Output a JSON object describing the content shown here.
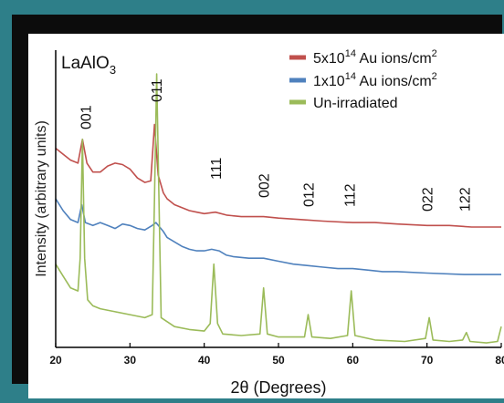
{
  "chart_data": {
    "type": "line",
    "title": "",
    "material_label": "LaAlO3",
    "xlabel": "2θ (Degrees)",
    "ylabel": "Intensity (arbitrary units)",
    "xlim": [
      20,
      80
    ],
    "x_ticks": [
      20,
      30,
      40,
      50,
      60,
      70,
      80
    ],
    "legend_position": "top-right",
    "peak_labels": [
      {
        "label": "001",
        "x": 24
      },
      {
        "label": "011",
        "x": 33.5
      },
      {
        "label": "111",
        "x": 41.5
      },
      {
        "label": "002",
        "x": 48
      },
      {
        "label": "012",
        "x": 54
      },
      {
        "label": "112",
        "x": 59.5
      },
      {
        "label": "022",
        "x": 70
      },
      {
        "label": "122",
        "x": 75
      }
    ],
    "series": [
      {
        "name": "5x10^14 Au ions/cm^2",
        "legend_main": "5x10",
        "legend_exp": "14",
        "legend_rest": " Au ions/cm",
        "legend_sup": "2",
        "color": "#c0504d",
        "points": [
          [
            20,
            0.67
          ],
          [
            21,
            0.65
          ],
          [
            22,
            0.63
          ],
          [
            23,
            0.62
          ],
          [
            23.6,
            0.7
          ],
          [
            24.2,
            0.62
          ],
          [
            25,
            0.59
          ],
          [
            26,
            0.59
          ],
          [
            27,
            0.61
          ],
          [
            28,
            0.62
          ],
          [
            29,
            0.615
          ],
          [
            30,
            0.6
          ],
          [
            31,
            0.57
          ],
          [
            32,
            0.555
          ],
          [
            32.8,
            0.56
          ],
          [
            33.3,
            0.75
          ],
          [
            33.8,
            0.58
          ],
          [
            34.5,
            0.52
          ],
          [
            35,
            0.5
          ],
          [
            36,
            0.48
          ],
          [
            37,
            0.47
          ],
          [
            38,
            0.46
          ],
          [
            39,
            0.455
          ],
          [
            40,
            0.45
          ],
          [
            41.5,
            0.455
          ],
          [
            43,
            0.445
          ],
          [
            45,
            0.44
          ],
          [
            48,
            0.44
          ],
          [
            50,
            0.435
          ],
          [
            53,
            0.43
          ],
          [
            56,
            0.425
          ],
          [
            60,
            0.42
          ],
          [
            63,
            0.42
          ],
          [
            66,
            0.415
          ],
          [
            70,
            0.41
          ],
          [
            73,
            0.41
          ],
          [
            76,
            0.405
          ],
          [
            80,
            0.405
          ]
        ]
      },
      {
        "name": "1x10^14 Au ions/cm^2",
        "legend_main": "1x10",
        "legend_exp": "14",
        "legend_rest": " Au ions/cm",
        "legend_sup": "2",
        "color": "#4f81bd",
        "points": [
          [
            20,
            0.5
          ],
          [
            21,
            0.46
          ],
          [
            22,
            0.43
          ],
          [
            23,
            0.42
          ],
          [
            23.5,
            0.48
          ],
          [
            24,
            0.42
          ],
          [
            25,
            0.41
          ],
          [
            26,
            0.42
          ],
          [
            27,
            0.41
          ],
          [
            28,
            0.4
          ],
          [
            29,
            0.415
          ],
          [
            30,
            0.41
          ],
          [
            31,
            0.4
          ],
          [
            32,
            0.395
          ],
          [
            33,
            0.41
          ],
          [
            33.5,
            0.42
          ],
          [
            34.5,
            0.39
          ],
          [
            35,
            0.37
          ],
          [
            36,
            0.355
          ],
          [
            37,
            0.34
          ],
          [
            38,
            0.33
          ],
          [
            39,
            0.325
          ],
          [
            40,
            0.325
          ],
          [
            41,
            0.33
          ],
          [
            42,
            0.325
          ],
          [
            43,
            0.31
          ],
          [
            44,
            0.305
          ],
          [
            46,
            0.3
          ],
          [
            48,
            0.3
          ],
          [
            50,
            0.29
          ],
          [
            52,
            0.28
          ],
          [
            54,
            0.275
          ],
          [
            56,
            0.27
          ],
          [
            58,
            0.265
          ],
          [
            60,
            0.265
          ],
          [
            62,
            0.26
          ],
          [
            64,
            0.255
          ],
          [
            66,
            0.255
          ],
          [
            70,
            0.25
          ],
          [
            75,
            0.245
          ],
          [
            80,
            0.245
          ]
        ]
      },
      {
        "name": "Un-irradiated",
        "legend_main": "Un-irradiated",
        "legend_exp": "",
        "legend_rest": "",
        "legend_sup": "",
        "color": "#9bbb59",
        "points": [
          [
            20,
            0.28
          ],
          [
            21,
            0.24
          ],
          [
            22,
            0.2
          ],
          [
            23,
            0.19
          ],
          [
            23.3,
            0.3
          ],
          [
            23.6,
            0.7
          ],
          [
            23.9,
            0.3
          ],
          [
            24.3,
            0.16
          ],
          [
            25,
            0.14
          ],
          [
            26,
            0.13
          ],
          [
            28,
            0.12
          ],
          [
            30,
            0.11
          ],
          [
            32,
            0.1
          ],
          [
            33,
            0.11
          ],
          [
            33.3,
            0.5
          ],
          [
            33.6,
            0.92
          ],
          [
            33.9,
            0.5
          ],
          [
            34.2,
            0.1
          ],
          [
            36,
            0.07
          ],
          [
            38,
            0.06
          ],
          [
            40,
            0.055
          ],
          [
            40.8,
            0.08
          ],
          [
            41.3,
            0.28
          ],
          [
            41.8,
            0.08
          ],
          [
            42.5,
            0.045
          ],
          [
            45,
            0.04
          ],
          [
            47.5,
            0.045
          ],
          [
            48,
            0.2
          ],
          [
            48.5,
            0.045
          ],
          [
            50,
            0.035
          ],
          [
            53.5,
            0.035
          ],
          [
            54,
            0.11
          ],
          [
            54.5,
            0.035
          ],
          [
            57,
            0.03
          ],
          [
            59.3,
            0.04
          ],
          [
            59.8,
            0.19
          ],
          [
            60.3,
            0.04
          ],
          [
            63,
            0.025
          ],
          [
            67,
            0.02
          ],
          [
            69.8,
            0.03
          ],
          [
            70.3,
            0.1
          ],
          [
            70.8,
            0.025
          ],
          [
            73,
            0.02
          ],
          [
            74.8,
            0.025
          ],
          [
            75.3,
            0.05
          ],
          [
            75.8,
            0.02
          ],
          [
            78,
            0.015
          ],
          [
            79.5,
            0.02
          ],
          [
            80,
            0.07
          ]
        ]
      }
    ]
  }
}
